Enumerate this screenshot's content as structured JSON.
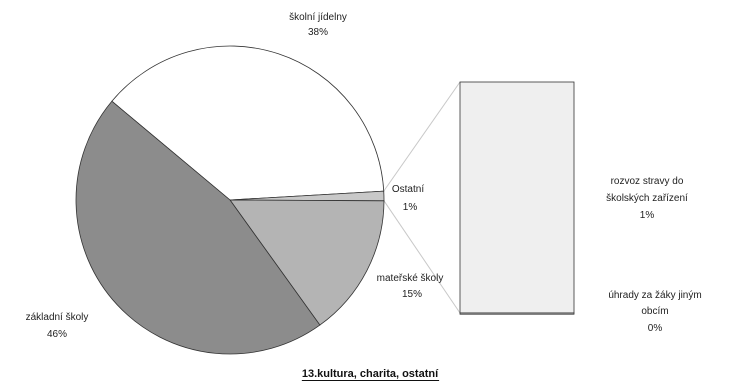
{
  "chart_data": {
    "type": "pie",
    "subtype": "pie-of-pie",
    "title": "13.kultura, charita, ostatní",
    "slices": [
      {
        "label": "školní jídelny",
        "value": 38,
        "value_label": "38%",
        "color": "#ffffff"
      },
      {
        "label": "Ostatní",
        "value": 1,
        "value_label": "1%",
        "color": "#c8c8c8"
      },
      {
        "label": "mateřské školy",
        "value": 15,
        "value_label": "15%",
        "color": "#b4b4b4"
      },
      {
        "label": "základní školy",
        "value": 46,
        "value_label": "46%",
        "color": "#8c8c8c"
      }
    ],
    "breakout_of": "Ostatní",
    "breakout": [
      {
        "label": "rozvoz stravy do školských zařízení",
        "value": 1,
        "value_label": "1%"
      },
      {
        "label": "úhrady za žáky jiným obcím",
        "value": 0,
        "value_label": "0%"
      }
    ],
    "legend": "none"
  }
}
